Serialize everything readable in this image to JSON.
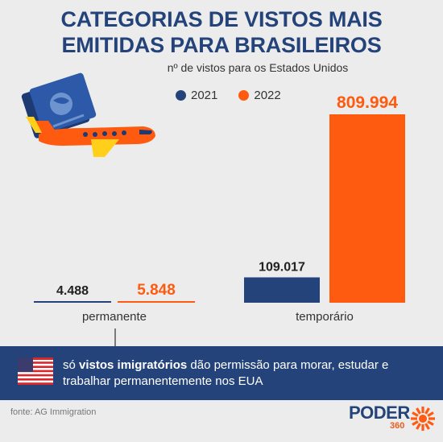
{
  "title_line1": "CATEGORIAS DE VISTOS MAIS",
  "title_line2": "EMITIDAS PARA BRASILEIROS",
  "subtitle": "nº de vistos para os Estados Unidos",
  "colors": {
    "series_2021": "#24437a",
    "series_2022": "#fe5a10",
    "title": "#24437a",
    "banner": "#24437a",
    "background": "#ececec"
  },
  "chart_data": {
    "type": "bar",
    "title": "CATEGORIAS DE VISTOS MAIS EMITIDAS PARA BRASILEIROS",
    "subtitle": "nº de vistos para os Estados Unidos",
    "categories": [
      "permanente",
      "temporário"
    ],
    "series": [
      {
        "name": "2021",
        "values": [
          4488,
          109017
        ],
        "labels": [
          "4.488",
          "109.017"
        ]
      },
      {
        "name": "2022",
        "values": [
          5848,
          809994
        ],
        "labels": [
          "5.848",
          "809.994"
        ]
      }
    ],
    "legend_position": "top",
    "grid": false
  },
  "banner": {
    "icon": "us-flag-icon",
    "bold_text": "vistos imigratórios",
    "before_text": "só ",
    "after_text": " dão permissão para morar, estudar e trabalhar permanentemente nos EUA"
  },
  "illustration": {
    "icons": [
      "passport-icon",
      "airplane-icon"
    ]
  },
  "source": "fonte: AG Immigration",
  "brand": {
    "name": "PODER",
    "sub": "360"
  }
}
